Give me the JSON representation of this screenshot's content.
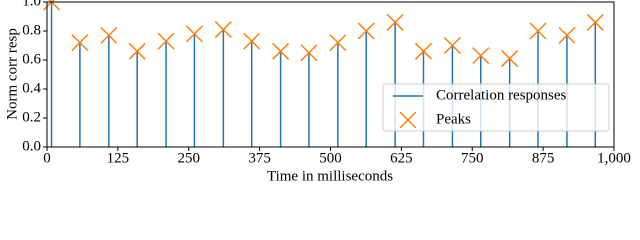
{
  "chart_data": {
    "type": "stem",
    "xlabel": "Time in milliseconds",
    "ylabel": "Norm corr resp",
    "x": [
      8,
      58,
      109,
      159,
      210,
      260,
      311,
      361,
      412,
      462,
      513,
      563,
      614,
      664,
      715,
      765,
      816,
      866,
      917,
      967
    ],
    "series": [
      {
        "name": "Correlation responses",
        "color": "#1f77b4",
        "values": [
          1.0,
          0.72,
          0.77,
          0.66,
          0.73,
          0.78,
          0.81,
          0.73,
          0.66,
          0.65,
          0.72,
          0.8,
          0.86,
          0.66,
          0.7,
          0.63,
          0.61,
          0.8,
          0.77,
          0.86
        ]
      },
      {
        "name": "Peaks",
        "color": "#ff7f0e",
        "values": [
          1.0,
          0.72,
          0.77,
          0.66,
          0.73,
          0.78,
          0.81,
          0.73,
          0.66,
          0.65,
          0.72,
          0.8,
          0.86,
          0.66,
          0.7,
          0.63,
          0.61,
          0.8,
          0.77,
          0.86
        ]
      }
    ],
    "xlim": [
      0,
      1000
    ],
    "xticks": [
      0,
      125,
      250,
      375,
      500,
      625,
      750,
      875,
      {
        "value": 1000,
        "label": "1,000"
      }
    ],
    "ylim": [
      0,
      1.0
    ],
    "yticks": [
      {
        "value": 0,
        "label": "0.0"
      },
      0.2,
      0.4,
      0.6,
      0.8,
      {
        "value": 1.0,
        "label": "1.0"
      }
    ],
    "legend": "lower right"
  }
}
